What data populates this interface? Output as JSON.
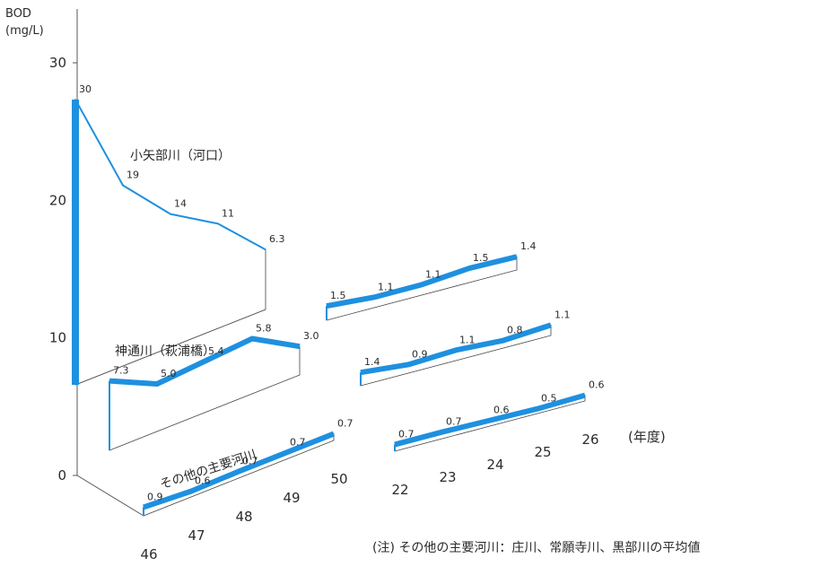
{
  "chart_data": {
    "type": "line",
    "ylabel": [
      "BOD",
      "(mg/L)"
    ],
    "yticks": [
      "0",
      "10",
      "20",
      "30"
    ],
    "ylim": [
      0,
      30
    ],
    "x_label": "(年度)",
    "segments": [
      {
        "x": [
          "46",
          "47",
          "48",
          "49",
          "50"
        ]
      },
      {
        "x": [
          "22",
          "23",
          "24",
          "25",
          "26"
        ]
      }
    ],
    "series": [
      {
        "name": "小矢部川（河口）",
        "values": [
          30,
          19,
          14,
          11,
          6.3
        ],
        "values_recent": [
          1.5,
          1.1,
          1.1,
          1.5,
          1.4
        ]
      },
      {
        "name": "神通川（萩浦橋）",
        "values": [
          7.3,
          5.0,
          5.4,
          5.8,
          3.0
        ],
        "values_recent": [
          1.4,
          0.9,
          1.1,
          0.8,
          1.1
        ]
      },
      {
        "name": "その他の主要河川",
        "values": [
          0.9,
          0.6,
          0.7,
          0.7,
          0.7
        ],
        "values_recent": [
          0.7,
          0.7,
          0.6,
          0.5,
          0.6
        ]
      }
    ],
    "series_labels": {
      "s0": [
        "30",
        "19",
        "14",
        "11",
        "6.3"
      ],
      "s0r": [
        "1.5",
        "1.1",
        "1.1",
        "1.5",
        "1.4"
      ],
      "s1": [
        "7.3",
        "5.0",
        "5.4",
        "5.8",
        "3.0"
      ],
      "s1r": [
        "1.4",
        "0.9",
        "1.1",
        "0.8",
        "1.1"
      ],
      "s2": [
        "0.9",
        "0.6",
        "0.7",
        "0.7",
        "0.7"
      ],
      "s2r": [
        "0.7",
        "0.7",
        "0.6",
        "0.5",
        "0.6"
      ]
    },
    "colors": {
      "accent": "#1e90e0",
      "text": "#2b2b2b"
    }
  },
  "note": "(注) その他の主要河川：庄川、常願寺川、黒部川の平均値"
}
